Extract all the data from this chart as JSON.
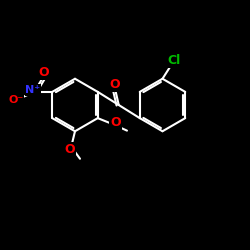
{
  "background_color": "#000000",
  "bond_color": "#ffffff",
  "bond_width": 1.5,
  "atom_colors": {
    "O": "#ff0000",
    "N": "#3333ff",
    "Cl": "#00bb00",
    "C": "#ffffff"
  },
  "font_size": 8,
  "fig_size": [
    2.5,
    2.5
  ],
  "dpi": 100,
  "xlim": [
    0,
    10
  ],
  "ylim": [
    0,
    10
  ]
}
